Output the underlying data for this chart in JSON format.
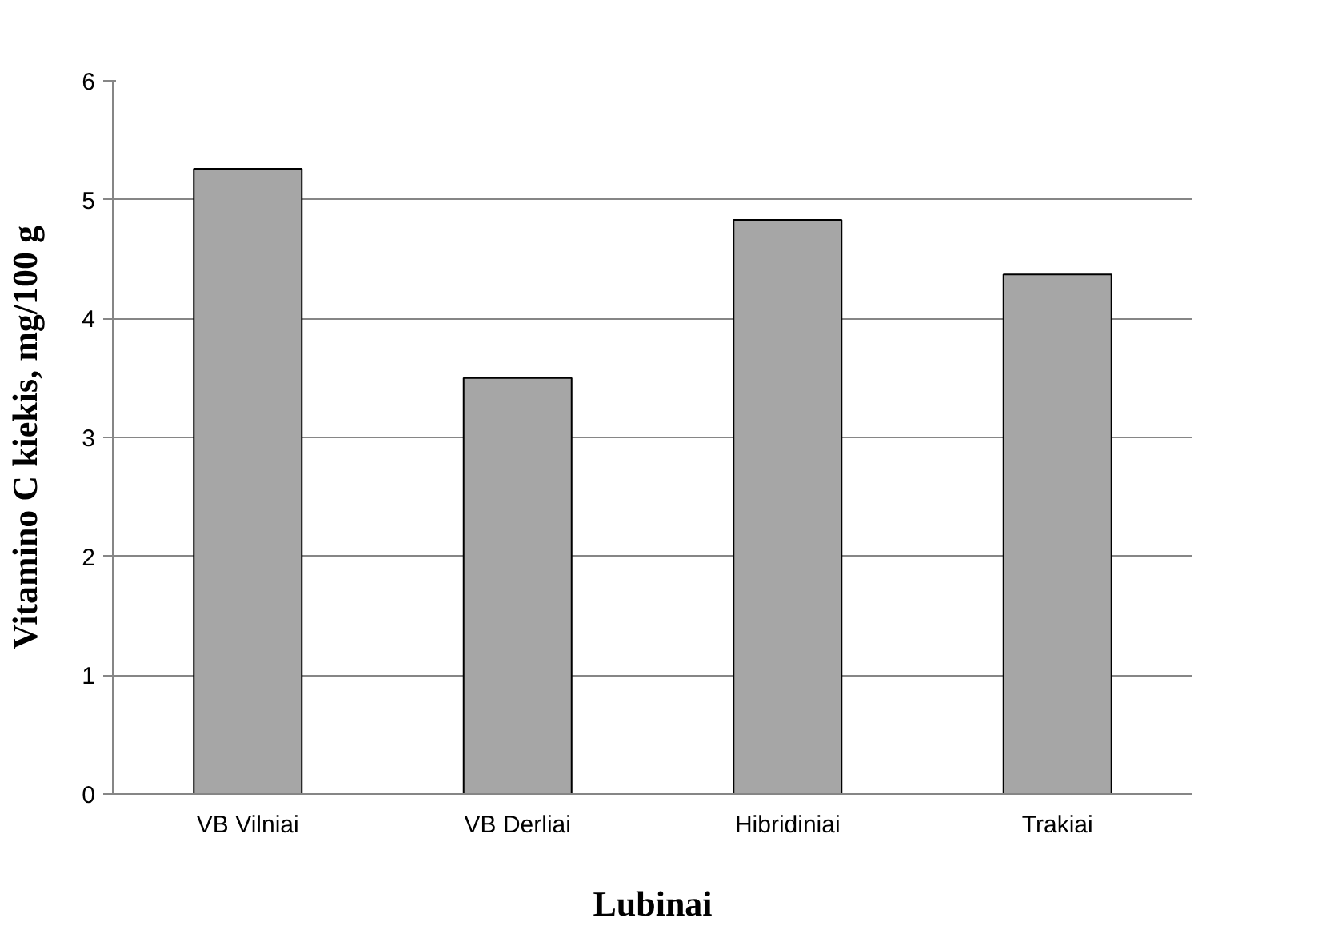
{
  "chart_data": {
    "type": "bar",
    "xlabel": "Lubinai",
    "ylabel": "Vitamino C kiekis, mg/100 g",
    "categories": [
      "VB Vilniai",
      "VB Derliai",
      "Hibridiniai",
      "Trakiai"
    ],
    "values": [
      5.26,
      3.5,
      4.83,
      4.37
    ],
    "color": "#a6a6a6",
    "ylim": [
      0,
      6
    ],
    "yticks": [
      0,
      1,
      2,
      3,
      4,
      5,
      6
    ],
    "grid": "y"
  }
}
